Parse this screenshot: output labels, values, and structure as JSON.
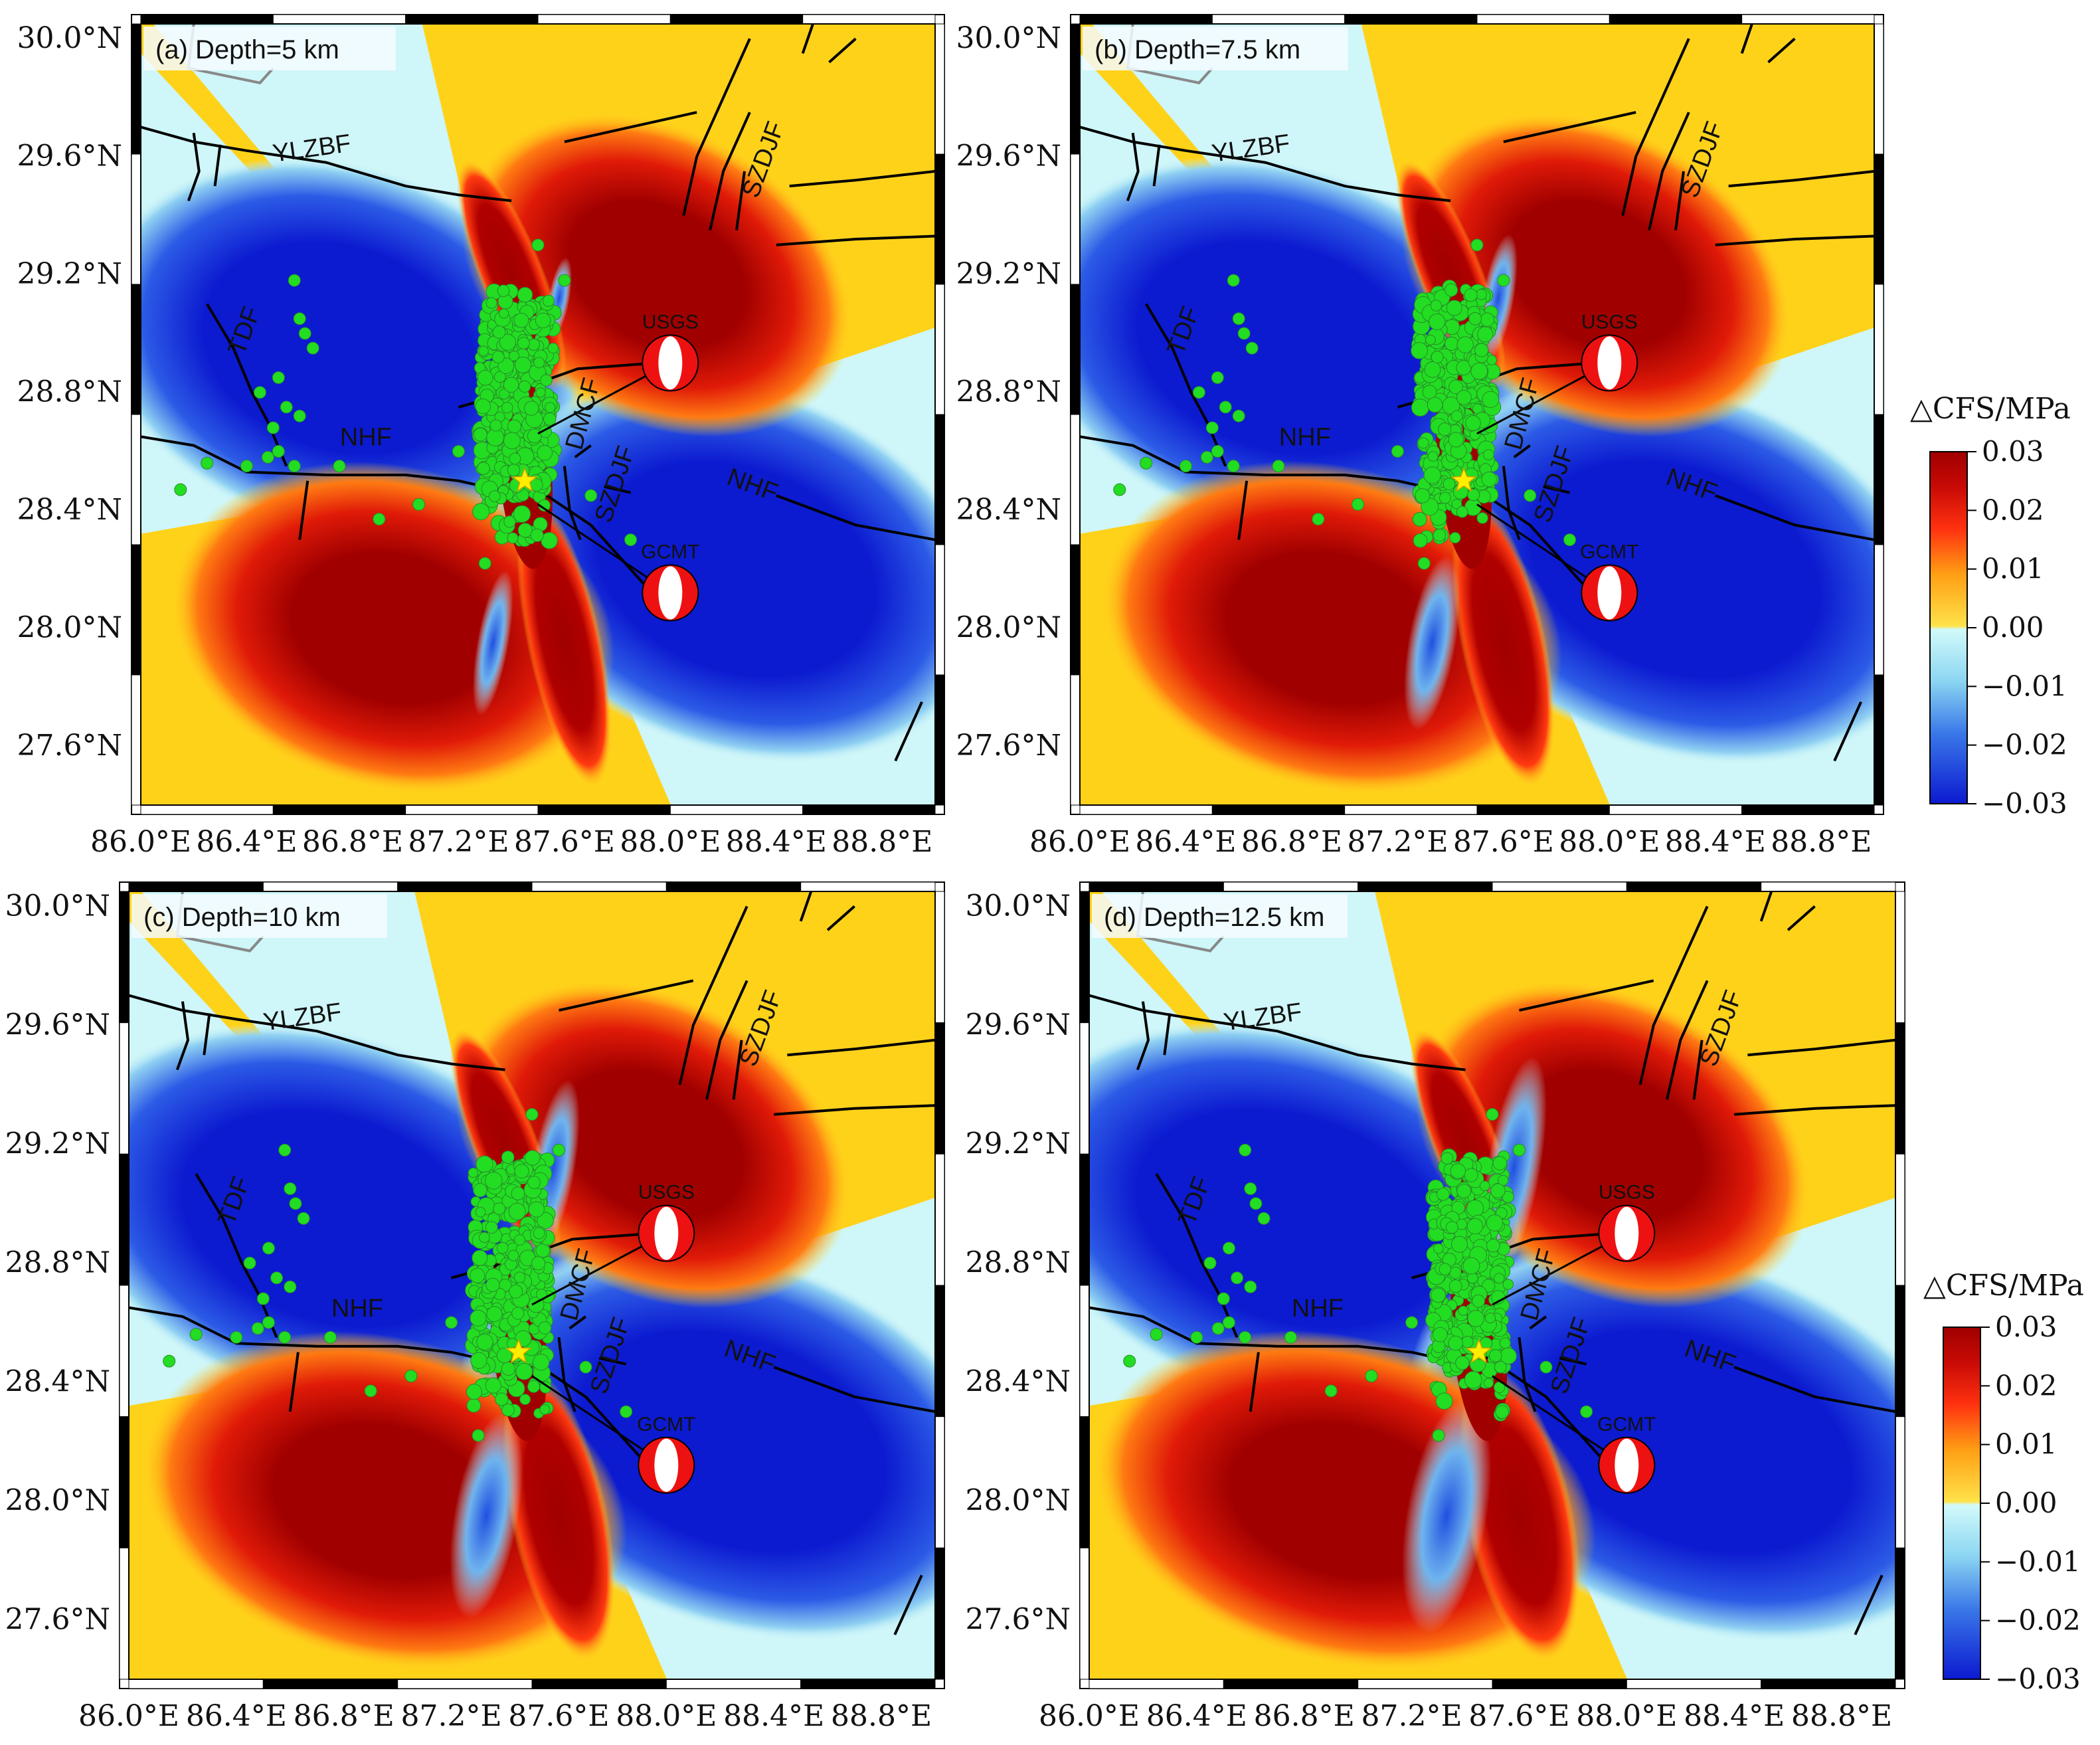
{
  "axes": {
    "lat_labels": [
      "30.0°N",
      "29.6°N",
      "29.2°N",
      "28.8°N",
      "28.4°N",
      "28.0°N",
      "27.6°N"
    ],
    "lat_values": [
      30.0,
      29.6,
      29.2,
      28.8,
      28.4,
      28.0,
      27.6
    ],
    "lon_labels": [
      "86.0°E",
      "86.4°E",
      "86.8°E",
      "87.2°E",
      "87.6°E",
      "88.0°E",
      "88.4°E",
      "88.8°E"
    ],
    "lon_values": [
      86.0,
      86.4,
      86.8,
      87.2,
      87.6,
      88.0,
      88.4,
      88.8
    ],
    "lon_range": [
      86.0,
      89.0
    ],
    "lat_range": [
      27.4,
      30.05
    ]
  },
  "colorbar": {
    "title": "△CFS/MPa",
    "ticks": [
      "0.03",
      "0.02",
      "0.01",
      "0.00",
      "−0.01",
      "−0.02",
      "−0.03"
    ],
    "range": [
      -0.03,
      0.03
    ],
    "colors": {
      "max": "#a00000",
      "high": "#ff2a0f",
      "pos": "#ffd21a",
      "zero_pos": "#ffe24a",
      "zero_neg": "#d2fafa",
      "neg": "#3a68e6",
      "min": "#0c1ad0"
    }
  },
  "panels": [
    {
      "label": "(a) Depth=5 km"
    },
    {
      "label": "(b) Depth=7.5 km"
    },
    {
      "label": "(c) Depth=10 km"
    },
    {
      "label": "(d) Depth=12.5 km"
    }
  ],
  "faults": {
    "YLZBF": "YLZBF",
    "SZDJF_north": "SZDJF",
    "TDF": "TDF",
    "NHF_west": "NHF",
    "DMCF": "DMCF",
    "SZDJF_south": "SZDJF",
    "NHF_east": "NHF"
  },
  "focal_mechanisms": [
    {
      "name": "USGS",
      "lon": 88.0,
      "lat": 28.9
    },
    {
      "name": "GCMT",
      "lon": 88.0,
      "lat": 28.12
    }
  ],
  "epicenter": {
    "lon": 87.45,
    "lat": 28.5
  },
  "aftershocks": {
    "color": "#22dd22",
    "cluster_center": [
      87.42,
      28.8
    ]
  },
  "legend_colors": {
    "fault": "#000000",
    "border": "#888888",
    "star": "#ffee00"
  }
}
